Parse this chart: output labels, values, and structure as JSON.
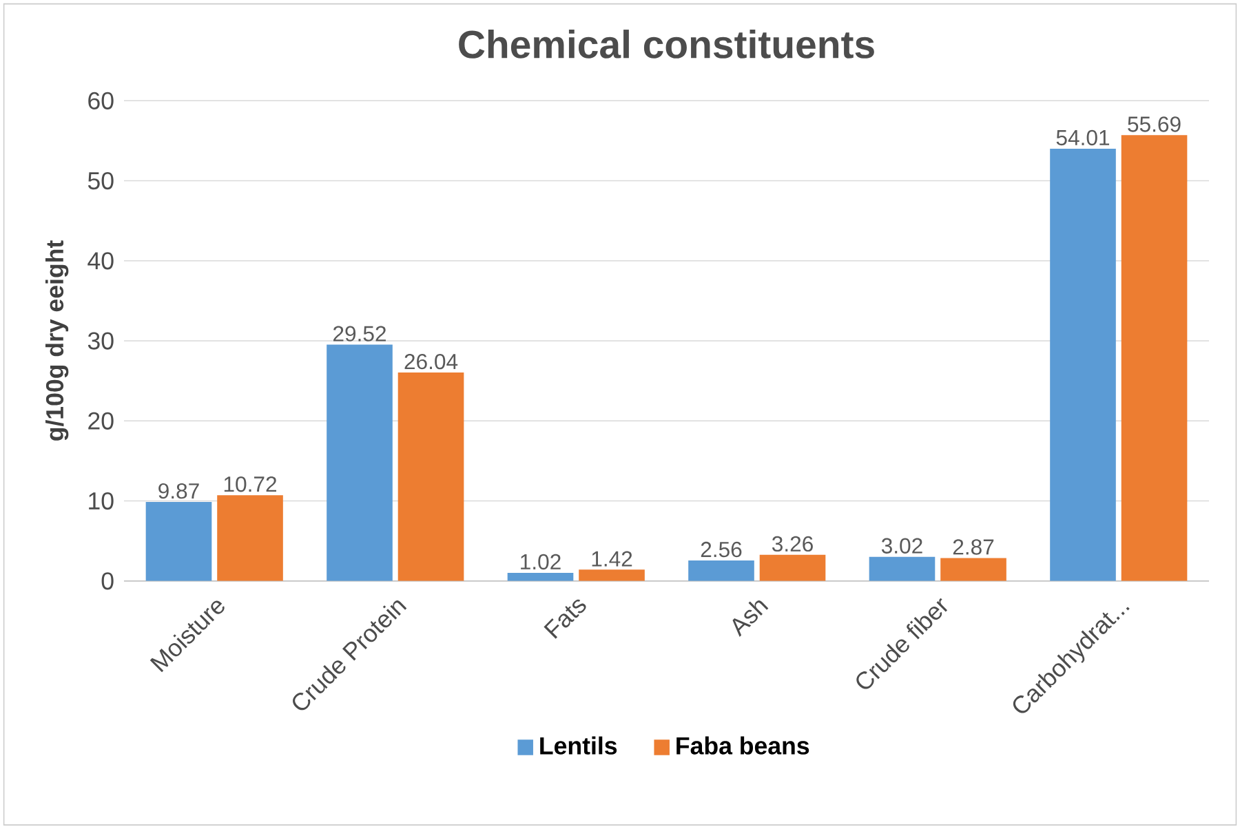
{
  "chart_data": {
    "type": "bar",
    "title": "Chemical constituents",
    "ylabel": "g/100g dry eeight",
    "categories": [
      "Moisture",
      "Crude Protein",
      "Fats",
      "Ash",
      "Crude fiber",
      "Carbohydrat..."
    ],
    "series": [
      {
        "name": "Lentils",
        "color": "#5b9bd5",
        "values": [
          9.87,
          29.52,
          1.02,
          2.56,
          3.02,
          54.01
        ]
      },
      {
        "name": "Faba beans",
        "color": "#ed7d31",
        "values": [
          10.72,
          26.04,
          1.42,
          3.26,
          2.87,
          55.69
        ]
      }
    ],
    "ylim": [
      0,
      60
    ],
    "yticks": [
      0,
      10,
      20,
      30,
      40,
      50,
      60
    ],
    "grid": "y",
    "legend": "bottom",
    "data_labels": true
  }
}
